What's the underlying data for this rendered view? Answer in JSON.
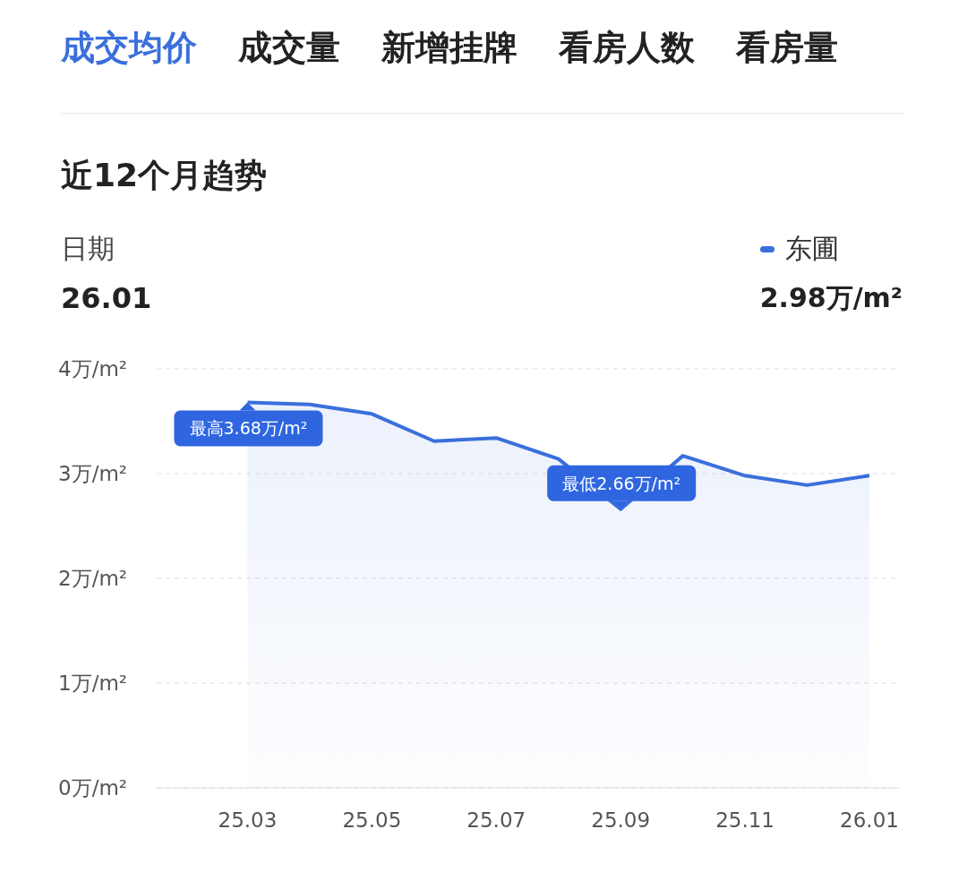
{
  "chart_data": {
    "type": "area",
    "title": "近12个月趋势",
    "categories": [
      null,
      "25.03",
      null,
      "25.05",
      null,
      "25.07",
      null,
      "25.09",
      null,
      "25.11",
      null,
      "26.01"
    ],
    "series": [
      {
        "name": "东圃",
        "color": "#3a6fdc",
        "values": [
          null,
          3.68,
          3.66,
          3.57,
          3.31,
          3.34,
          3.14,
          2.66,
          3.17,
          2.98,
          2.89,
          2.98
        ]
      }
    ],
    "ylim": [
      0,
      4
    ],
    "yticks": [
      {
        "value": 0,
        "label": "0万/m²"
      },
      {
        "value": 1,
        "label": "1万/m²"
      },
      {
        "value": 2,
        "label": "2万/m²"
      },
      {
        "value": 3,
        "label": "3万/m²"
      },
      {
        "value": 4,
        "label": "4万/m²"
      }
    ],
    "grid": "y",
    "legend": "top right",
    "annotations": [
      "成交均价",
      "成交量",
      "新增挂牌",
      "看房人数",
      "看房量",
      "日期",
      "26.01",
      "2.98万/m²",
      {
        "text": "最高3.68万/m²",
        "x": "25.03",
        "y": 3.68
      },
      {
        "text": "最低2.66万/m²",
        "x": "25.09",
        "y": 2.66
      }
    ]
  }
}
